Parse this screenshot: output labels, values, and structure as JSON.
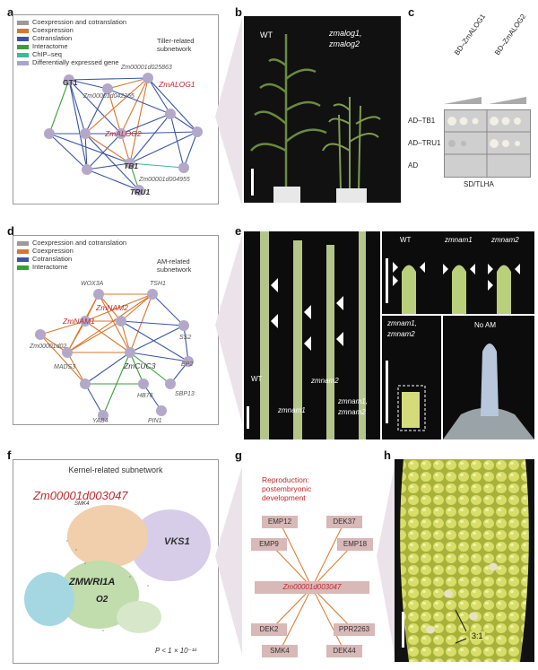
{
  "panel_labels": [
    "a",
    "b",
    "c",
    "d",
    "e",
    "f",
    "g",
    "h"
  ],
  "panel_a": {
    "legend": [
      {
        "label": "Coexpression and cotranslation",
        "color": "#9b9b9b"
      },
      {
        "label": "Coexpression",
        "color": "#d9762d"
      },
      {
        "label": "Cotranslation",
        "color": "#3a55a4"
      },
      {
        "label": "Interactome",
        "color": "#3b9e3a"
      },
      {
        "label": "ChIP–seq",
        "color": "#3cb89b"
      },
      {
        "label": "Differentially expressed gene",
        "color": "#a9a4c9"
      }
    ],
    "title": "Tiller-related subnetwork",
    "genes": {
      "zm_025863": "Zm00001d025863",
      "gt1": "GT1",
      "zm_042265": "Zm00001d042265",
      "zmalog1": "ZmALOG1",
      "zmalog2": "ZmALOG2",
      "tb1": "TB1",
      "zm_004955": "Zm00001d004955",
      "tru1": "TRU1"
    }
  },
  "panel_b": {
    "wt": "WT",
    "mutant_line1": "zmalog1,",
    "mutant_line2": "zmalog2"
  },
  "panel_c": {
    "col1": "BD–ZmALOG1",
    "col2": "BD–ZmALOG2",
    "rows": [
      "AD–TB1",
      "AD–TRU1",
      "AD"
    ],
    "medium": "SD/TLHA"
  },
  "panel_d": {
    "legend": [
      {
        "label": "Coexpression and cotranslation",
        "color": "#9b9b9b"
      },
      {
        "label": "Coexpression",
        "color": "#d9762d"
      },
      {
        "label": "Cotranslation",
        "color": "#3a55a4"
      },
      {
        "label": "Interactome",
        "color": "#3b9e3a"
      }
    ],
    "title": "AM-related subnetwork",
    "genes": {
      "wox3a": "WOX3A",
      "tsh1": "TSH1",
      "zmnam2": "ZmNAM2",
      "zmnam1": "ZmNAM1",
      "zm_02": "Zm00001d02",
      "mads": "MADS3",
      "zmcuc3": "ZmCUC3",
      "ss2": "SS2",
      "ep2": "EP2",
      "hb76": "HB76",
      "sbp13": "SBP13",
      "pin1": "PIN1",
      "yab4": "YAB4"
    }
  },
  "panel_e": {
    "wt": "WT",
    "zmnam1": "zmnam1",
    "zmnam2": "zmnam2",
    "double1": "zmnam1,",
    "double2": "zmnam2",
    "inset_wt": "WT",
    "inset_zmnam1": "zmnam1",
    "inset_zmnam2": "zmnam2",
    "inset_double1": "zmnam1,",
    "inset_double2": "zmnam2",
    "no_am": "No AM"
  },
  "panel_f": {
    "title": "Kernel-related subnetwork",
    "hub": "Zm00001d003047",
    "vks1": "VKS1",
    "zmwri1a": "ZMWRI1A",
    "o2": "O2",
    "smk4": "SMK4",
    "pvalue": "P < 1 × 10⁻¹⁶"
  },
  "panel_g": {
    "title_line1": "Reproduction:",
    "title_line2": "postembryonic",
    "title_line3": "development",
    "hub": "Zm00001d003047",
    "genes": [
      "EMP12",
      "DEK37",
      "EMP9",
      "EMP18",
      "DEK2",
      "PPR2263",
      "SMK4",
      "DEK44"
    ]
  },
  "panel_h": {
    "ratio": "3:1"
  }
}
